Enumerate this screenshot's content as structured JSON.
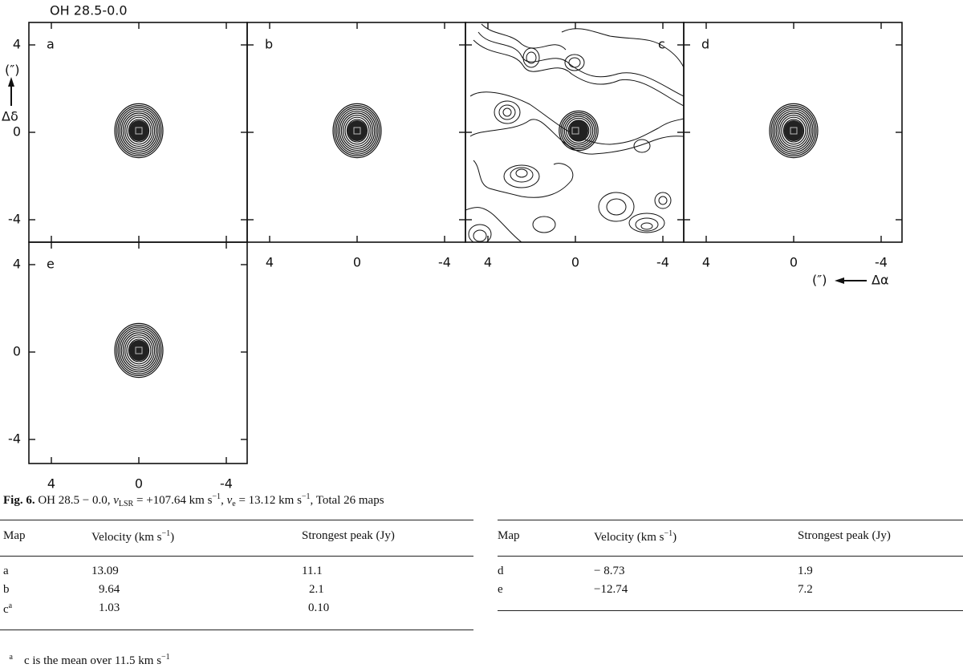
{
  "figure": {
    "title": "OH 28.5-0.0",
    "y_axis_unit": "(″)",
    "y_axis_label": "Δδ",
    "x_axis_unit": "(″)",
    "x_axis_label": "Δα",
    "ticks": [
      "4",
      "0",
      "-4"
    ],
    "panels": [
      {
        "label": "a"
      },
      {
        "label": "b"
      },
      {
        "label": "c"
      },
      {
        "label": "d"
      },
      {
        "label": "e"
      }
    ]
  },
  "caption": [
    {
      "text": "Fig. 6.",
      "style": "bold"
    },
    {
      "text": " OH 28.5 − 0.0, "
    },
    {
      "text": "v",
      "style": "italic"
    },
    {
      "text": "LSR",
      "style": "sub"
    },
    {
      "text": " = +107.64 km s"
    },
    {
      "text": "−1",
      "style": "sup"
    },
    {
      "text": ", "
    },
    {
      "text": "v",
      "style": "italic"
    },
    {
      "text": "e",
      "style": "sub"
    },
    {
      "text": " = 13.12 km s"
    },
    {
      "text": "−1",
      "style": "sup"
    },
    {
      "text": ", Total 26 maps"
    }
  ],
  "tables": [
    {
      "header": [
        "Map",
        [
          {
            "text": "Velocity (km s"
          },
          {
            "text": "−1",
            "style": "sup"
          },
          {
            "text": ")"
          }
        ],
        "Strongest peak (Jy)"
      ],
      "rows": [
        [
          "a",
          "13.09",
          "11.1"
        ],
        [
          "b",
          "9.64",
          "2.1"
        ],
        [
          [
            {
              "text": "c"
            },
            {
              "text": "a",
              "style": "sup"
            }
          ],
          "1.03",
          "0.10"
        ]
      ]
    },
    {
      "header": [
        "Map",
        [
          {
            "text": "Velocity (km s"
          },
          {
            "text": "−1",
            "style": "sup"
          },
          {
            "text": ")"
          }
        ],
        "Strongest peak (Jy)"
      ],
      "rows": [
        [
          "d",
          "− 8.73",
          "1.9"
        ],
        [
          "e",
          "−12.74",
          "7.2"
        ]
      ]
    }
  ],
  "footnote": {
    "marker": "a",
    "text": [
      {
        "text": "c is the mean over 11.5 km s"
      },
      {
        "text": "−1",
        "style": "sup"
      }
    ]
  }
}
